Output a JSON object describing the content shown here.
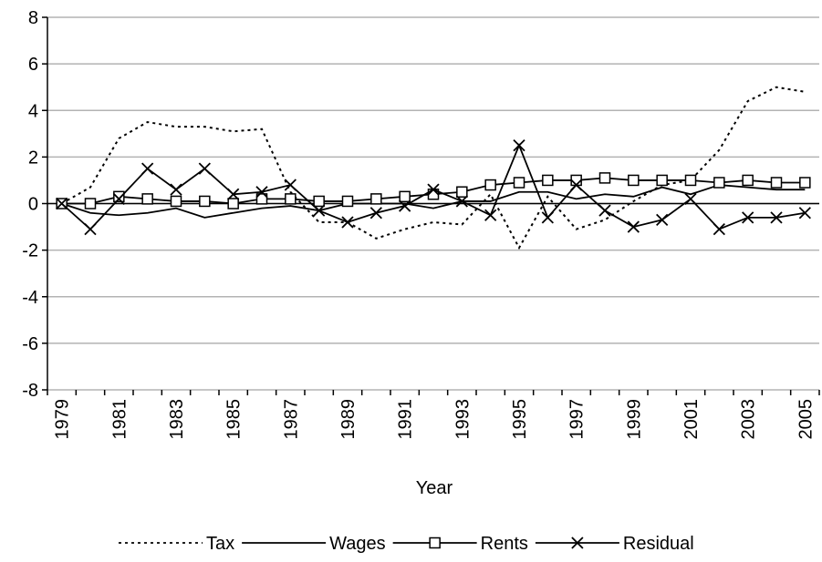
{
  "chart_data": {
    "type": "line",
    "x_label": "Year",
    "categories": [
      "1979",
      null,
      "1981",
      null,
      "1983",
      null,
      "1985",
      null,
      "1987",
      null,
      "1989",
      null,
      "1991",
      null,
      "1993",
      null,
      "1995",
      null,
      "1997",
      null,
      "1999",
      null,
      "2001",
      null,
      "2003",
      null,
      "2005"
    ],
    "ylim": [
      -8,
      8
    ],
    "yticks": [
      -8,
      -6,
      -4,
      -2,
      0,
      2,
      4,
      6,
      8
    ],
    "grid": true,
    "legend": "bottom",
    "series": [
      {
        "name": "Tax",
        "color": "#000000",
        "style": "dotted",
        "marker": "none",
        "values": [
          0,
          0.7,
          2.8,
          3.5,
          3.3,
          3.3,
          3.1,
          3.2,
          0.5,
          -0.8,
          -0.8,
          -1.5,
          -1.1,
          -0.8,
          -0.9,
          0.4,
          -1.9,
          0.3,
          -1.1,
          -0.7,
          0.1,
          0.8,
          1.0,
          2.3,
          4.4,
          5.0,
          4.8
        ]
      },
      {
        "name": "Wages",
        "color": "#000000",
        "style": "solid",
        "marker": "none",
        "values": [
          0,
          -0.4,
          -0.5,
          -0.4,
          -0.2,
          -0.6,
          -0.4,
          -0.2,
          -0.1,
          -0.3,
          0,
          0,
          0,
          -0.2,
          0.1,
          0.1,
          0.5,
          0.5,
          0.2,
          0.4,
          0.3,
          0.7,
          0.4,
          0.8,
          0.7,
          0.6,
          0.6
        ]
      },
      {
        "name": "Rents",
        "color": "#000000",
        "style": "solid",
        "marker": "square",
        "values": [
          0,
          0,
          0.3,
          0.2,
          0.1,
          0.1,
          0,
          0.2,
          0.2,
          0.1,
          0.1,
          0.2,
          0.3,
          0.4,
          0.5,
          0.8,
          0.9,
          1.0,
          1.0,
          1.1,
          1.0,
          1.0,
          1.0,
          0.9,
          1.0,
          0.9,
          0.9
        ]
      },
      {
        "name": "Residual",
        "color": "#000000",
        "style": "solid",
        "marker": "x",
        "values": [
          0,
          -1.1,
          0.2,
          1.5,
          0.6,
          1.5,
          0.4,
          0.5,
          0.8,
          -0.3,
          -0.8,
          -0.4,
          -0.1,
          0.6,
          0.1,
          -0.5,
          2.5,
          -0.6,
          0.8,
          -0.3,
          -1.0,
          -0.7,
          0.2,
          -1.1,
          -0.6,
          -0.6,
          -0.4
        ]
      }
    ]
  }
}
